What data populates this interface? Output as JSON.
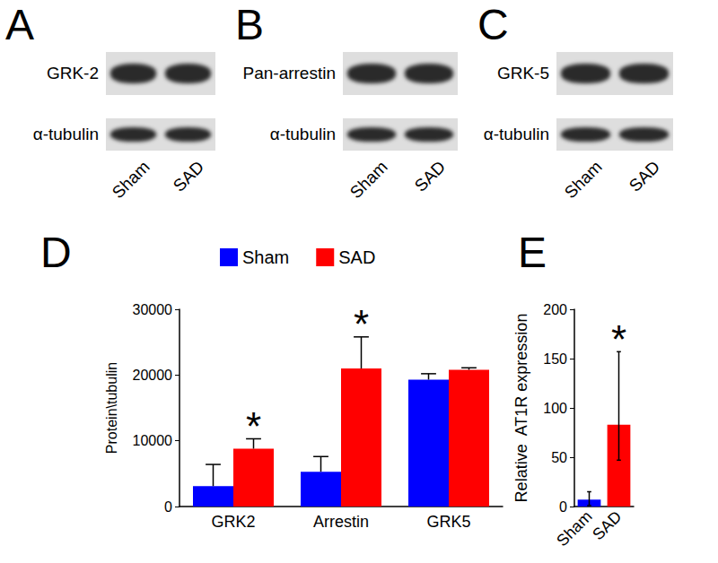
{
  "chart_data": [
    {
      "type": "bar",
      "title": "D",
      "categories": [
        "GRK2",
        "Arrestin",
        "GRK5"
      ],
      "series": [
        {
          "name": "Sham",
          "color": "#0000ff",
          "values": [
            3100,
            5300,
            19300
          ],
          "errors": [
            3300,
            2300,
            900
          ]
        },
        {
          "name": "SAD",
          "color": "#ff0000",
          "values": [
            8800,
            21000,
            20800
          ],
          "errors": [
            1500,
            4800,
            300
          ]
        }
      ],
      "ylabel": "Protein\\tubulin",
      "ylim": [
        0,
        30000
      ],
      "yticks": [
        0,
        10000,
        20000,
        30000
      ],
      "grid": false,
      "legend": "top",
      "annotations": [
        {
          "text": "*",
          "series": "SAD",
          "category": "GRK2"
        },
        {
          "text": "*",
          "series": "SAD",
          "category": "Arrestin"
        }
      ]
    },
    {
      "type": "bar",
      "title": "E",
      "categories": [
        "Sham",
        "SAD"
      ],
      "values": [
        7,
        83
      ],
      "colors": [
        "#0000ff",
        "#ff0000"
      ],
      "error_minus": [
        6,
        36
      ],
      "error_plus": [
        8,
        74
      ],
      "ylabel": "Relative  AT1R expression",
      "ylim": [
        0,
        200
      ],
      "yticks": [
        0,
        50,
        100,
        150,
        200
      ],
      "grid": false,
      "annotations": [
        {
          "text": "*",
          "category": "SAD"
        }
      ]
    }
  ],
  "blots": [
    {
      "title": "A",
      "rows": [
        "GRK-2",
        "α-tubulin"
      ],
      "lanes": [
        "Sham",
        "SAD"
      ]
    },
    {
      "title": "B",
      "rows": [
        "Pan-arrestin",
        "α-tubulin"
      ],
      "lanes": [
        "Sham",
        "SAD"
      ]
    },
    {
      "title": "C",
      "rows": [
        "GRK-5",
        "α-tubulin"
      ],
      "lanes": [
        "Sham",
        "SAD"
      ]
    }
  ]
}
